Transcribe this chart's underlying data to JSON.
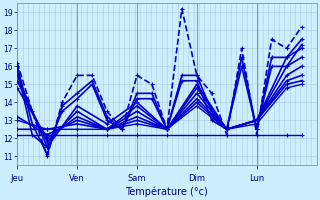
{
  "background_color": "#cceeff",
  "grid_color": "#aaccdd",
  "line_color": "#0000cc",
  "ylim": [
    10.5,
    19.5
  ],
  "yticks": [
    11,
    12,
    13,
    14,
    15,
    16,
    17,
    18,
    19
  ],
  "days": [
    "Jeu",
    "Ven",
    "Sam",
    "Dim",
    "Lun"
  ],
  "day_x": [
    0,
    56,
    112,
    168,
    224
  ],
  "xlim": [
    0,
    280
  ],
  "xlabel": "Température (°c)",
  "series": [
    {
      "y0": 16.2,
      "y1": 18.2,
      "style": "--",
      "lw": 1.2,
      "points": [
        [
          0,
          16.2
        ],
        [
          14,
          13.5
        ],
        [
          28,
          11.0
        ],
        [
          42,
          14.0
        ],
        [
          56,
          15.5
        ],
        [
          70,
          15.5
        ],
        [
          84,
          13.5
        ],
        [
          98,
          12.5
        ],
        [
          112,
          15.5
        ],
        [
          126,
          15.0
        ],
        [
          140,
          12.5
        ],
        [
          154,
          19.2
        ],
        [
          168,
          15.5
        ],
        [
          182,
          14.5
        ],
        [
          196,
          12.2
        ],
        [
          210,
          17.0
        ],
        [
          224,
          12.2
        ],
        [
          238,
          17.5
        ],
        [
          252,
          17.0
        ],
        [
          266,
          18.2
        ]
      ]
    },
    {
      "y0": 16.0,
      "y1": 17.5,
      "style": "-",
      "lw": 1.2,
      "points": [
        [
          0,
          16.0
        ],
        [
          14,
          12.8
        ],
        [
          28,
          11.1
        ],
        [
          42,
          13.8
        ],
        [
          56,
          14.5
        ],
        [
          70,
          15.2
        ],
        [
          84,
          13.2
        ],
        [
          98,
          12.5
        ],
        [
          112,
          14.5
        ],
        [
          126,
          14.5
        ],
        [
          140,
          12.5
        ],
        [
          154,
          15.5
        ],
        [
          168,
          15.5
        ],
        [
          182,
          13.5
        ],
        [
          196,
          12.5
        ],
        [
          210,
          16.5
        ],
        [
          224,
          12.5
        ],
        [
          238,
          16.5
        ],
        [
          252,
          16.5
        ],
        [
          266,
          17.5
        ]
      ]
    },
    {
      "y0": 15.8,
      "y1": 17.2,
      "style": "-",
      "lw": 1.2,
      "points": [
        [
          0,
          15.8
        ],
        [
          14,
          12.2
        ],
        [
          28,
          11.5
        ],
        [
          42,
          13.5
        ],
        [
          56,
          14.2
        ],
        [
          70,
          15.0
        ],
        [
          84,
          13.0
        ],
        [
          98,
          12.5
        ],
        [
          112,
          14.2
        ],
        [
          126,
          14.2
        ],
        [
          140,
          12.5
        ],
        [
          154,
          15.2
        ],
        [
          168,
          15.2
        ],
        [
          182,
          13.0
        ],
        [
          196,
          12.5
        ],
        [
          210,
          16.0
        ],
        [
          224,
          12.5
        ],
        [
          238,
          16.0
        ],
        [
          252,
          16.0
        ],
        [
          266,
          17.2
        ]
      ]
    },
    {
      "y0": 15.5,
      "y1": 17.0,
      "style": "-",
      "lw": 1.2,
      "points": [
        [
          0,
          15.5
        ],
        [
          28,
          11.5
        ],
        [
          56,
          13.8
        ],
        [
          84,
          12.8
        ],
        [
          112,
          14.0
        ],
        [
          140,
          12.5
        ],
        [
          168,
          15.0
        ],
        [
          196,
          12.5
        ],
        [
          224,
          13.0
        ],
        [
          252,
          16.5
        ],
        [
          266,
          17.0
        ]
      ]
    },
    {
      "y0": 15.2,
      "y1": 16.5,
      "style": "-",
      "lw": 1.2,
      "points": [
        [
          0,
          15.2
        ],
        [
          28,
          11.8
        ],
        [
          56,
          13.5
        ],
        [
          84,
          12.5
        ],
        [
          112,
          13.8
        ],
        [
          140,
          12.5
        ],
        [
          168,
          14.8
        ],
        [
          196,
          12.5
        ],
        [
          224,
          13.0
        ],
        [
          252,
          16.0
        ],
        [
          266,
          16.5
        ]
      ]
    },
    {
      "y0": 14.8,
      "y1": 16.0,
      "style": "-",
      "lw": 1.2,
      "points": [
        [
          0,
          14.8
        ],
        [
          28,
          12.0
        ],
        [
          56,
          13.2
        ],
        [
          84,
          12.5
        ],
        [
          112,
          13.5
        ],
        [
          140,
          12.5
        ],
        [
          168,
          14.5
        ],
        [
          196,
          12.5
        ],
        [
          224,
          13.0
        ],
        [
          252,
          15.5
        ],
        [
          266,
          16.0
        ]
      ]
    },
    {
      "y0": 13.2,
      "y1": 15.5,
      "style": "-",
      "lw": 1.2,
      "points": [
        [
          0,
          13.2
        ],
        [
          28,
          12.2
        ],
        [
          56,
          13.0
        ],
        [
          84,
          12.5
        ],
        [
          112,
          13.2
        ],
        [
          140,
          12.5
        ],
        [
          168,
          14.2
        ],
        [
          196,
          12.5
        ],
        [
          224,
          13.0
        ],
        [
          252,
          15.2
        ],
        [
          266,
          15.5
        ]
      ]
    },
    {
      "y0": 12.5,
      "y1": 15.2,
      "style": "-",
      "lw": 1.2,
      "points": [
        [
          0,
          12.5
        ],
        [
          28,
          12.5
        ],
        [
          56,
          12.8
        ],
        [
          84,
          12.5
        ],
        [
          112,
          13.0
        ],
        [
          140,
          12.5
        ],
        [
          168,
          14.0
        ],
        [
          196,
          12.5
        ],
        [
          224,
          13.0
        ],
        [
          252,
          15.0
        ],
        [
          266,
          15.2
        ]
      ]
    },
    {
      "y0": 13.0,
      "y1": 15.0,
      "style": "-",
      "lw": 1.0,
      "points": [
        [
          0,
          13.0
        ],
        [
          28,
          12.5
        ],
        [
          56,
          12.5
        ],
        [
          84,
          12.5
        ],
        [
          112,
          12.8
        ],
        [
          140,
          12.5
        ],
        [
          168,
          13.8
        ],
        [
          196,
          12.5
        ],
        [
          224,
          12.8
        ],
        [
          252,
          14.8
        ],
        [
          266,
          15.0
        ]
      ]
    },
    {
      "y0": 12.2,
      "y1": 12.2,
      "style": "-",
      "lw": 1.0,
      "points": [
        [
          0,
          12.2
        ],
        [
          28,
          12.2
        ],
        [
          56,
          12.2
        ],
        [
          84,
          12.2
        ],
        [
          112,
          12.2
        ],
        [
          140,
          12.2
        ],
        [
          168,
          12.2
        ],
        [
          196,
          12.2
        ],
        [
          224,
          12.2
        ],
        [
          252,
          12.2
        ],
        [
          266,
          12.2
        ]
      ]
    }
  ]
}
